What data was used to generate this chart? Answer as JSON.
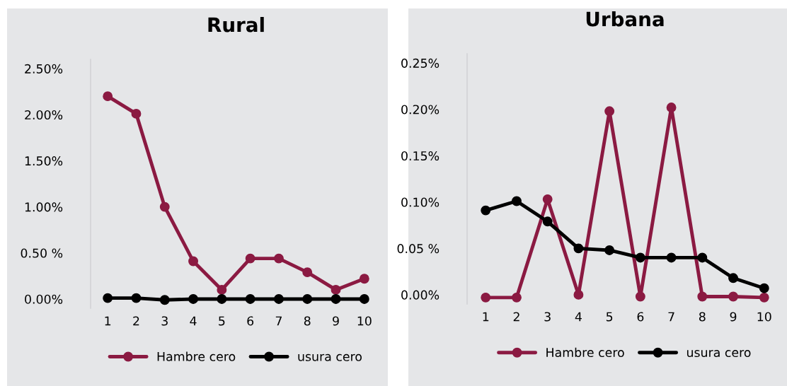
{
  "chart_data": [
    {
      "type": "line",
      "title": "Rural",
      "categories": [
        "1",
        "2",
        "3",
        "4",
        "5",
        "6",
        "7",
        "8",
        "9",
        "10"
      ],
      "series": [
        {
          "name": "Hambre cero",
          "color": "#8b1a42",
          "values": [
            2.2,
            2.01,
            1.0,
            0.41,
            0.1,
            0.44,
            0.44,
            0.29,
            0.1,
            0.22
          ]
        },
        {
          "name": "usura cero",
          "color": "#000000",
          "values": [
            0.01,
            0.01,
            -0.01,
            0.0,
            0.0,
            0.0,
            0.0,
            0.0,
            0.0,
            0.0
          ]
        }
      ],
      "ylim": [
        -0.1,
        2.6
      ],
      "yticks": [
        {
          "value": 0,
          "label": "0.00%"
        },
        {
          "value": 0.5,
          "label": "0.50 %"
        },
        {
          "value": 1,
          "label": "1.00%"
        },
        {
          "value": 1.5,
          "label": "1.50%"
        },
        {
          "value": 2,
          "label": "2.00%"
        },
        {
          "value": 2.5,
          "label": "2.50%"
        }
      ],
      "grid": false,
      "legend": "bottom",
      "marker": "circle",
      "line_style": "solid"
    },
    {
      "type": "line",
      "title": "Urbana",
      "categories": [
        "1",
        "2",
        "3",
        "4",
        "5",
        "6",
        "7",
        "8",
        "9",
        "10"
      ],
      "series": [
        {
          "name": "Hambre cero",
          "color": "#8b1a42",
          "values": [
            -0.003,
            -0.003,
            0.103,
            0.0,
            0.198,
            -0.002,
            0.202,
            -0.002,
            -0.002,
            -0.003
          ]
        },
        {
          "name": "usura cero",
          "color": "#000000",
          "values": [
            0.091,
            0.101,
            0.079,
            0.05,
            0.048,
            0.04,
            0.04,
            0.04,
            0.018,
            0.007
          ]
        }
      ],
      "ylim": [
        -0.01,
        0.26
      ],
      "yticks": [
        {
          "value": 0,
          "label": "0.00%"
        },
        {
          "value": 0.05,
          "label": "0.05 %"
        },
        {
          "value": 0.1,
          "label": "0.10%"
        },
        {
          "value": 0.15,
          "label": "0.15%"
        },
        {
          "value": 0.2,
          "label": "0.20%"
        },
        {
          "value": 0.25,
          "label": "0.25%"
        }
      ],
      "grid": false,
      "legend": "bottom",
      "marker": "circle",
      "line_style": "solid"
    }
  ]
}
